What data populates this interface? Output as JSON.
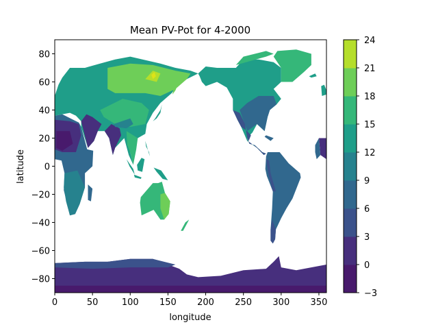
{
  "chart_data": {
    "type": "heatmap",
    "title": "Mean PV-Pot for 4-2000",
    "xlabel": "longitude",
    "ylabel": "latitude",
    "xlim": [
      0,
      360
    ],
    "ylim": [
      -90,
      90
    ],
    "x_ticks": [
      0,
      50,
      100,
      150,
      200,
      250,
      300,
      350
    ],
    "y_ticks": [
      -80,
      -60,
      -40,
      -20,
      0,
      20,
      40,
      60,
      80
    ],
    "grid": false,
    "colorbar": {
      "levels": [
        -3,
        0,
        3,
        6,
        9,
        12,
        15,
        18,
        21,
        24
      ],
      "tick_labels": [
        "−3",
        "0",
        "3",
        "6",
        "9",
        "12",
        "15",
        "18",
        "21",
        "24"
      ],
      "colors": [
        "#481a6c",
        "#472f7d",
        "#3b528b",
        "#31688e",
        "#26828e",
        "#1f9e89",
        "#35b779",
        "#6ece58",
        "#b5de2b",
        "#dde318"
      ]
    },
    "colors": {
      "land_default": "#31688e",
      "ocean": "#ffffff"
    }
  }
}
